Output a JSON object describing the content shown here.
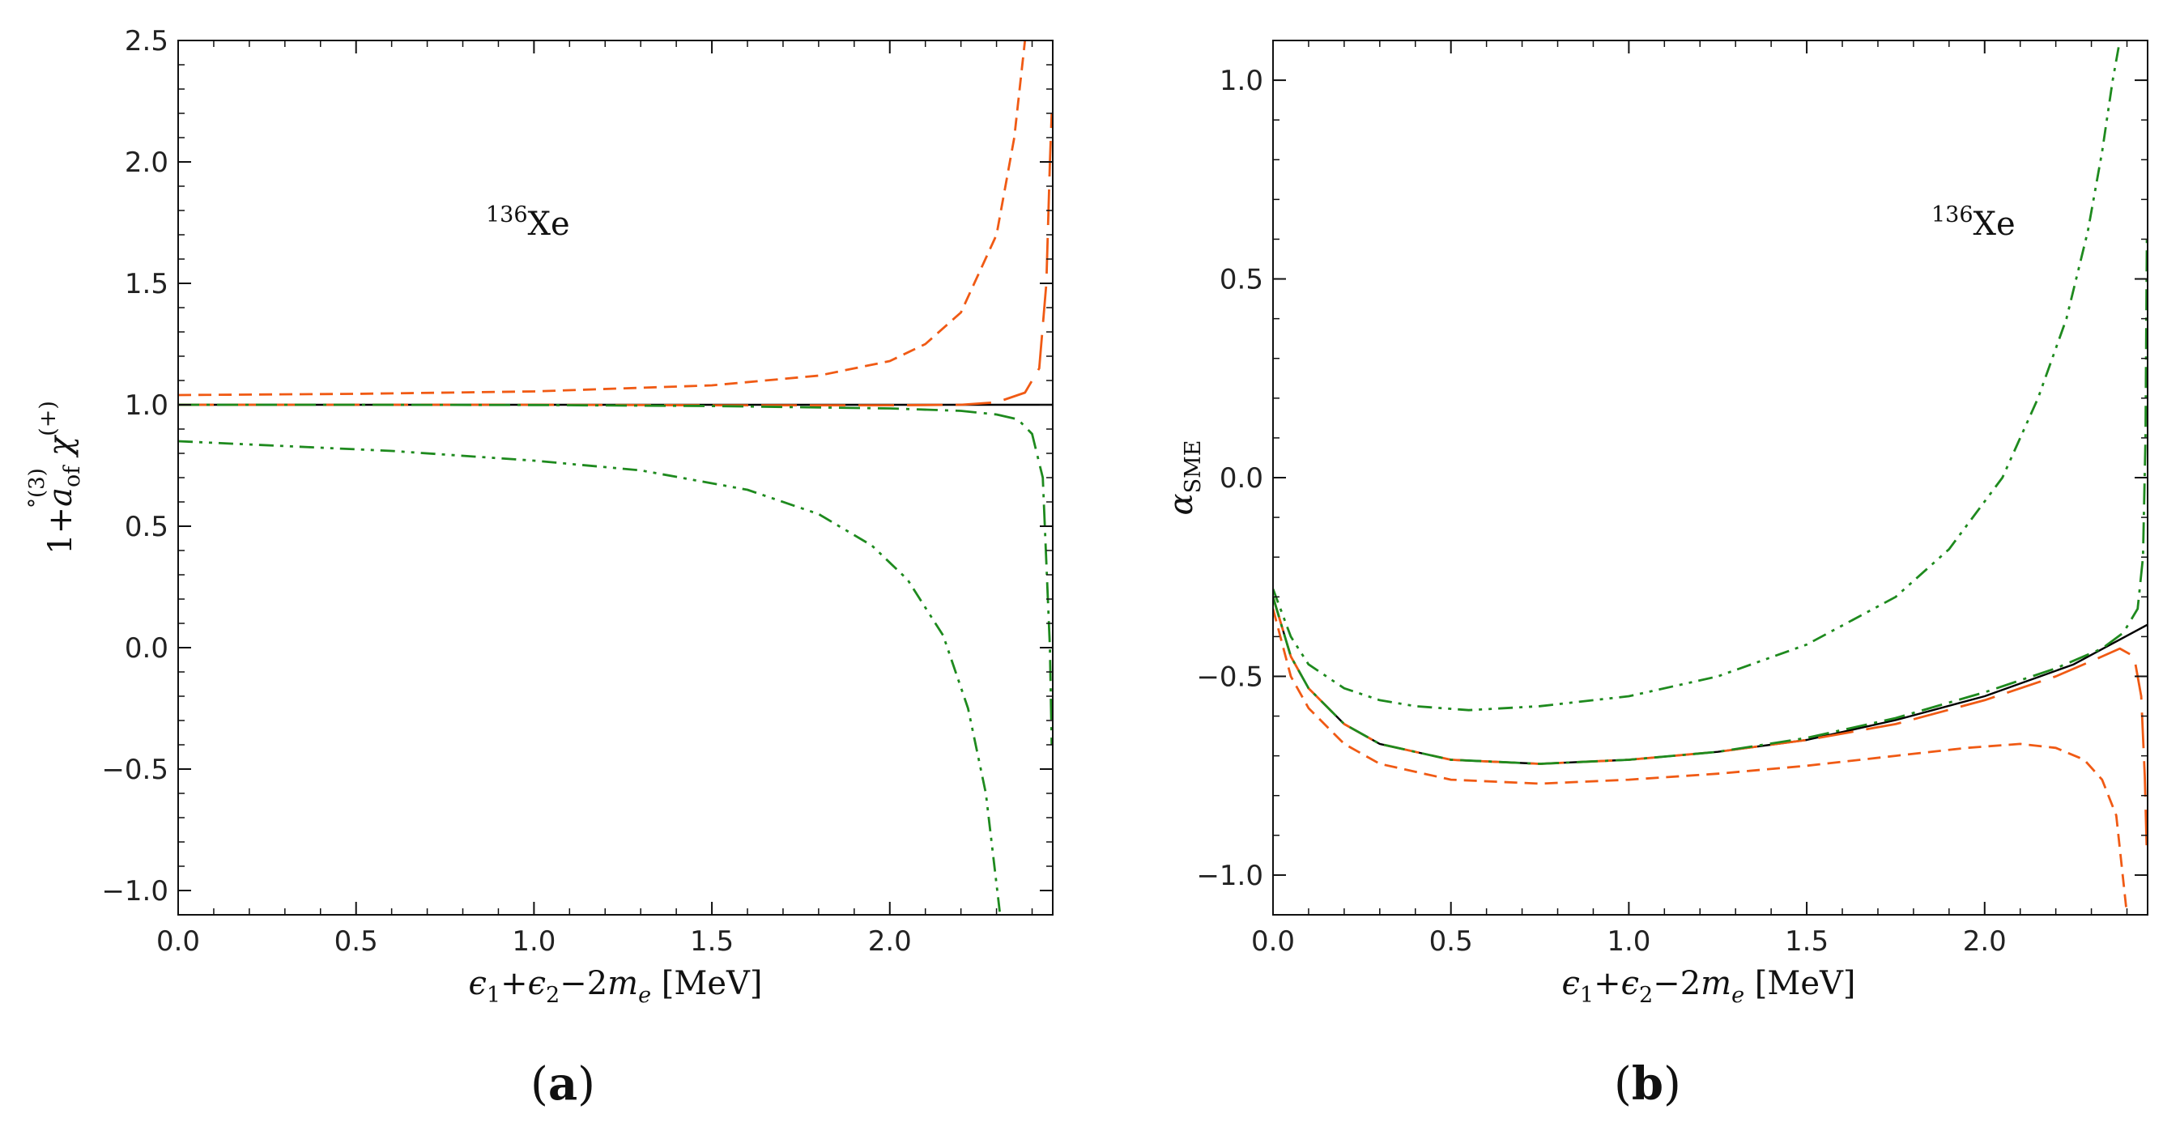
{
  "figure": {
    "panel_labels": {
      "a_open": "(",
      "a_letter": "a",
      "a_close": ")",
      "b_open": "(",
      "b_letter": "b",
      "b_close": ")"
    },
    "colors": {
      "orange": "#f05a14",
      "green": "#1e8a1e",
      "black": "#000000"
    }
  },
  "chart_data": [
    {
      "id": "a",
      "type": "line",
      "xlabel": "ϵ1+ϵ2−2me [MeV]",
      "ylabel": "1+a°(3)of χ(+)",
      "annotation": {
        "mass": "136",
        "element": "Xe"
      },
      "xlim": [
        0,
        2.458
      ],
      "ylim": [
        -1.1,
        2.5
      ],
      "x_ticks": [
        0.0,
        0.5,
        1.0,
        1.5,
        2.0
      ],
      "x_tick_labels": [
        "0.0",
        "0.5",
        "1.0",
        "1.5",
        "2.0"
      ],
      "y_ticks": [
        -1.0,
        -0.5,
        0.0,
        0.5,
        1.0,
        1.5,
        2.0,
        2.5
      ],
      "y_tick_labels": [
        "−1.0",
        "−0.5",
        "0.0",
        "0.5",
        "1.0",
        "1.5",
        "2.0",
        "2.5"
      ],
      "series": [
        {
          "name": "black solid",
          "color": "#000000",
          "dash": "solid",
          "x": [
            0,
            2.458
          ],
          "y": [
            1.0,
            1.0
          ]
        },
        {
          "name": "orange short dashed",
          "color": "#f05a14",
          "dash": "short",
          "x": [
            0,
            0.5,
            1.0,
            1.5,
            1.8,
            2.0,
            2.1,
            2.2,
            2.3,
            2.35,
            2.38
          ],
          "y": [
            1.04,
            1.045,
            1.055,
            1.08,
            1.12,
            1.18,
            1.25,
            1.38,
            1.7,
            2.1,
            2.5
          ]
        },
        {
          "name": "orange long dashed",
          "color": "#f05a14",
          "dash": "long",
          "x": [
            0,
            0.5,
            1.0,
            1.5,
            2.0,
            2.2,
            2.3,
            2.38,
            2.42,
            2.44,
            2.45,
            2.455
          ],
          "y": [
            1.0,
            1.0,
            1.0,
            0.998,
            0.998,
            1.0,
            1.01,
            1.05,
            1.15,
            1.5,
            2.0,
            2.2
          ]
        },
        {
          "name": "green dash-dot",
          "color": "#1e8a1e",
          "dash": "dashdot",
          "x": [
            0,
            0.5,
            1.0,
            1.5,
            2.0,
            2.2,
            2.3,
            2.36,
            2.4,
            2.43,
            2.45,
            2.455
          ],
          "y": [
            1.0,
            1.0,
            0.999,
            0.995,
            0.985,
            0.975,
            0.96,
            0.94,
            0.88,
            0.7,
            0.0,
            -0.4
          ]
        },
        {
          "name": "green dash-dot-dot",
          "color": "#1e8a1e",
          "dash": "dashdotdot",
          "x": [
            0,
            0.3,
            0.6,
            1.0,
            1.3,
            1.6,
            1.8,
            1.95,
            2.05,
            2.15,
            2.22,
            2.27,
            2.31
          ],
          "y": [
            0.85,
            0.83,
            0.81,
            0.77,
            0.73,
            0.65,
            0.55,
            0.42,
            0.28,
            0.05,
            -0.25,
            -0.6,
            -1.1
          ]
        }
      ]
    },
    {
      "id": "b",
      "type": "line",
      "xlabel": "ϵ1+ϵ2−2me [MeV]",
      "ylabel": "αSME",
      "annotation": {
        "mass": "136",
        "element": "Xe"
      },
      "xlim": [
        0,
        2.458
      ],
      "ylim": [
        -1.1,
        1.1
      ],
      "x_ticks": [
        0.0,
        0.5,
        1.0,
        1.5,
        2.0
      ],
      "x_tick_labels": [
        "0.0",
        "0.5",
        "1.0",
        "1.5",
        "2.0"
      ],
      "y_ticks": [
        -1.0,
        -0.5,
        0.0,
        0.5,
        1.0
      ],
      "y_tick_labels": [
        "−1.0",
        "−0.5",
        "0.0",
        "0.5",
        "1.0"
      ],
      "series": [
        {
          "name": "black solid",
          "color": "#000000",
          "dash": "solid",
          "x": [
            0,
            0.05,
            0.1,
            0.2,
            0.3,
            0.5,
            0.75,
            1.0,
            1.25,
            1.5,
            1.75,
            2.0,
            2.25,
            2.458
          ],
          "y": [
            -0.3,
            -0.45,
            -0.53,
            -0.62,
            -0.67,
            -0.71,
            -0.72,
            -0.71,
            -0.69,
            -0.66,
            -0.61,
            -0.55,
            -0.47,
            -0.37
          ]
        },
        {
          "name": "orange short dashed",
          "color": "#f05a14",
          "dash": "short",
          "x": [
            0,
            0.05,
            0.1,
            0.2,
            0.3,
            0.5,
            0.75,
            1.0,
            1.25,
            1.5,
            1.75,
            1.95,
            2.1,
            2.2,
            2.28,
            2.33,
            2.37,
            2.4
          ],
          "y": [
            -0.33,
            -0.5,
            -0.58,
            -0.67,
            -0.72,
            -0.76,
            -0.77,
            -0.76,
            -0.745,
            -0.725,
            -0.7,
            -0.68,
            -0.67,
            -0.68,
            -0.71,
            -0.76,
            -0.85,
            -1.1
          ]
        },
        {
          "name": "orange long dashed",
          "color": "#f05a14",
          "dash": "long",
          "x": [
            0,
            0.05,
            0.1,
            0.2,
            0.3,
            0.5,
            0.75,
            1.0,
            1.25,
            1.5,
            1.75,
            2.0,
            2.2,
            2.33,
            2.38,
            2.42,
            2.44,
            2.45,
            2.456
          ],
          "y": [
            -0.3,
            -0.45,
            -0.53,
            -0.62,
            -0.67,
            -0.71,
            -0.72,
            -0.71,
            -0.69,
            -0.66,
            -0.62,
            -0.56,
            -0.5,
            -0.45,
            -0.43,
            -0.45,
            -0.55,
            -0.75,
            -0.95
          ]
        },
        {
          "name": "green dash-dot",
          "color": "#1e8a1e",
          "dash": "dashdot",
          "x": [
            0,
            0.05,
            0.1,
            0.2,
            0.3,
            0.5,
            0.75,
            1.0,
            1.25,
            1.5,
            1.75,
            2.0,
            2.2,
            2.33,
            2.39,
            2.43,
            2.445,
            2.452,
            2.456
          ],
          "y": [
            -0.3,
            -0.45,
            -0.53,
            -0.62,
            -0.67,
            -0.71,
            -0.72,
            -0.71,
            -0.69,
            -0.655,
            -0.605,
            -0.54,
            -0.48,
            -0.43,
            -0.39,
            -0.33,
            -0.2,
            0.1,
            0.6
          ]
        },
        {
          "name": "green dash-dot-dot",
          "color": "#1e8a1e",
          "dash": "dashdotdot",
          "x": [
            0,
            0.05,
            0.1,
            0.2,
            0.3,
            0.4,
            0.55,
            0.75,
            1.0,
            1.25,
            1.5,
            1.75,
            1.9,
            2.05,
            2.15,
            2.23,
            2.29,
            2.33,
            2.36,
            2.38
          ],
          "y": [
            -0.28,
            -0.4,
            -0.47,
            -0.53,
            -0.56,
            -0.575,
            -0.585,
            -0.575,
            -0.55,
            -0.5,
            -0.42,
            -0.3,
            -0.18,
            0.0,
            0.2,
            0.4,
            0.62,
            0.82,
            1.0,
            1.1
          ]
        }
      ]
    }
  ]
}
